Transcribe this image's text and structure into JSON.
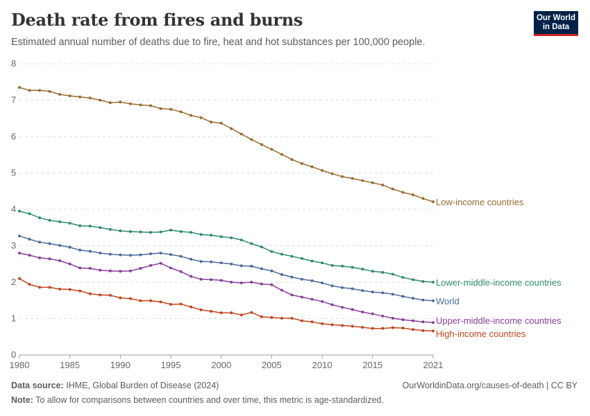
{
  "header": {
    "title": "Death rate from fires and burns",
    "subtitle": "Estimated annual number of deaths due to fire, heat and hot substances per 100,000 people.",
    "logo_line1": "Our World",
    "logo_line2": "in Data"
  },
  "footer": {
    "source_label": "Data source:",
    "source_text": "IHME, Global Burden of Disease (2024)",
    "url_text": "OurWorldinData.org/causes-of-death | CC BY",
    "note_label": "Note:",
    "note_text": "To allow for comparisons between countries and over time, this metric is age-standardized."
  },
  "chart_data": {
    "type": "line",
    "x_ticks": [
      "1980",
      "1985",
      "1990",
      "1995",
      "2000",
      "2005",
      "2010",
      "2015",
      "2021"
    ],
    "y_ticks": [
      "0",
      "1",
      "2",
      "3",
      "4",
      "5",
      "6",
      "7",
      "8"
    ],
    "xlim": [
      1980,
      2021
    ],
    "ylim": [
      0,
      8
    ],
    "grid": "horizontal-dashed",
    "legend": "line-end labels",
    "series": [
      {
        "name": "Low-income countries",
        "color": "#9a6a30",
        "x": [
          1980,
          1981,
          1982,
          1983,
          1984,
          1985,
          1986,
          1987,
          1988,
          1989,
          1990,
          1991,
          1992,
          1993,
          1994,
          1995,
          1996,
          1997,
          1998,
          1999,
          2000,
          2001,
          2002,
          2003,
          2004,
          2005,
          2006,
          2007,
          2008,
          2009,
          2010,
          2011,
          2012,
          2013,
          2014,
          2015,
          2016,
          2017,
          2018,
          2019,
          2020,
          2021
        ],
        "values": [
          7.35,
          7.27,
          7.27,
          7.24,
          7.16,
          7.12,
          7.09,
          7.06,
          7.0,
          6.93,
          6.95,
          6.9,
          6.87,
          6.85,
          6.77,
          6.75,
          6.68,
          6.58,
          6.52,
          6.4,
          6.37,
          6.22,
          6.07,
          5.92,
          5.78,
          5.65,
          5.51,
          5.37,
          5.26,
          5.17,
          5.07,
          4.98,
          4.9,
          4.85,
          4.79,
          4.73,
          4.67,
          4.56,
          4.47,
          4.4,
          4.3,
          4.21
        ]
      },
      {
        "name": "Lower-middle-income countries",
        "color": "#2e8b6a",
        "x": [
          1980,
          1981,
          1982,
          1983,
          1984,
          1985,
          1986,
          1987,
          1988,
          1989,
          1990,
          1991,
          1992,
          1993,
          1994,
          1995,
          1996,
          1997,
          1998,
          1999,
          2000,
          2001,
          2002,
          2003,
          2004,
          2005,
          2006,
          2007,
          2008,
          2009,
          2010,
          2011,
          2012,
          2013,
          2014,
          2015,
          2016,
          2017,
          2018,
          2019,
          2020,
          2021
        ],
        "values": [
          3.95,
          3.88,
          3.77,
          3.7,
          3.66,
          3.62,
          3.55,
          3.54,
          3.5,
          3.45,
          3.41,
          3.39,
          3.38,
          3.37,
          3.38,
          3.43,
          3.39,
          3.37,
          3.31,
          3.29,
          3.25,
          3.22,
          3.16,
          3.06,
          2.97,
          2.84,
          2.77,
          2.71,
          2.65,
          2.58,
          2.53,
          2.46,
          2.44,
          2.41,
          2.36,
          2.3,
          2.27,
          2.22,
          2.13,
          2.07,
          2.02,
          2.0
        ]
      },
      {
        "name": "World",
        "color": "#4c6a9c",
        "x": [
          1980,
          1981,
          1982,
          1983,
          1984,
          1985,
          1986,
          1987,
          1988,
          1989,
          1990,
          1991,
          1992,
          1993,
          1994,
          1995,
          1996,
          1997,
          1998,
          1999,
          2000,
          2001,
          2002,
          2003,
          2004,
          2005,
          2006,
          2007,
          2008,
          2009,
          2010,
          2011,
          2012,
          2013,
          2014,
          2015,
          2016,
          2017,
          2018,
          2019,
          2020,
          2021
        ],
        "values": [
          3.27,
          3.18,
          3.1,
          3.06,
          3.01,
          2.96,
          2.88,
          2.85,
          2.8,
          2.77,
          2.75,
          2.74,
          2.75,
          2.78,
          2.8,
          2.76,
          2.71,
          2.63,
          2.57,
          2.56,
          2.53,
          2.5,
          2.45,
          2.44,
          2.37,
          2.31,
          2.21,
          2.14,
          2.08,
          2.04,
          1.98,
          1.9,
          1.85,
          1.82,
          1.77,
          1.73,
          1.71,
          1.67,
          1.61,
          1.56,
          1.51,
          1.49
        ]
      },
      {
        "name": "Upper-middle-income countries",
        "color": "#883d9a",
        "x": [
          1980,
          1981,
          1982,
          1983,
          1984,
          1985,
          1986,
          1987,
          1988,
          1989,
          1990,
          1991,
          1992,
          1993,
          1994,
          1995,
          1996,
          1997,
          1998,
          1999,
          2000,
          2001,
          2002,
          2003,
          2004,
          2005,
          2006,
          2007,
          2008,
          2009,
          2010,
          2011,
          2012,
          2013,
          2014,
          2015,
          2016,
          2017,
          2018,
          2019,
          2020,
          2021
        ],
        "values": [
          2.8,
          2.74,
          2.67,
          2.64,
          2.59,
          2.5,
          2.39,
          2.38,
          2.33,
          2.31,
          2.3,
          2.31,
          2.38,
          2.46,
          2.52,
          2.39,
          2.29,
          2.16,
          2.08,
          2.07,
          2.05,
          2.0,
          1.98,
          2.0,
          1.95,
          1.93,
          1.78,
          1.65,
          1.59,
          1.53,
          1.47,
          1.38,
          1.31,
          1.25,
          1.18,
          1.13,
          1.07,
          1.01,
          0.97,
          0.94,
          0.91,
          0.89
        ]
      },
      {
        "name": "High-income countries",
        "color": "#c2461d",
        "x": [
          1980,
          1981,
          1982,
          1983,
          1984,
          1985,
          1986,
          1987,
          1988,
          1989,
          1990,
          1991,
          1992,
          1993,
          1994,
          1995,
          1996,
          1997,
          1998,
          1999,
          2000,
          2001,
          2002,
          2003,
          2004,
          2005,
          2006,
          2007,
          2008,
          2009,
          2010,
          2011,
          2012,
          2013,
          2014,
          2015,
          2016,
          2017,
          2018,
          2019,
          2020,
          2021
        ],
        "values": [
          2.1,
          1.94,
          1.86,
          1.86,
          1.81,
          1.8,
          1.76,
          1.68,
          1.65,
          1.64,
          1.57,
          1.55,
          1.49,
          1.49,
          1.46,
          1.39,
          1.4,
          1.32,
          1.24,
          1.2,
          1.16,
          1.16,
          1.1,
          1.17,
          1.05,
          1.03,
          1.01,
          1.01,
          0.94,
          0.91,
          0.86,
          0.83,
          0.81,
          0.79,
          0.76,
          0.73,
          0.73,
          0.75,
          0.74,
          0.7,
          0.67,
          0.66
        ]
      }
    ]
  }
}
